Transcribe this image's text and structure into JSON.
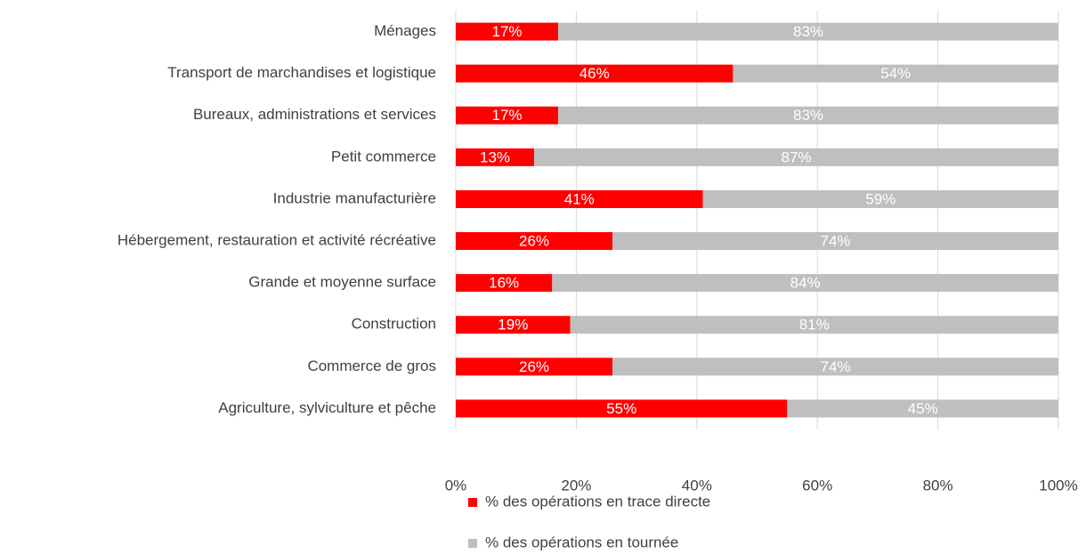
{
  "chart_data": {
    "type": "bar",
    "orientation": "horizontal",
    "stacked": true,
    "categories": [
      "Ménages",
      "Transport de marchandises et logistique",
      "Bureaux, administrations et services",
      "Petit commerce",
      "Industrie manufacturière",
      "Hébergement, restauration et activité récréative",
      "Grande et moyenne surface",
      "Construction",
      "Commerce de gros",
      "Agriculture, sylviculture et pêche"
    ],
    "series": [
      {
        "name": "% des opérations en trace directe",
        "color": "#ff0000",
        "values": [
          17,
          46,
          17,
          13,
          41,
          26,
          16,
          19,
          26,
          55
        ],
        "value_labels": [
          "17%",
          "46%",
          "17%",
          "13%",
          "41%",
          "26%",
          "16%",
          "19%",
          "26%",
          "55%"
        ]
      },
      {
        "name": "% des opérations en tournée",
        "color": "#bfbfbf",
        "values": [
          83,
          54,
          83,
          87,
          59,
          74,
          84,
          81,
          74,
          45
        ],
        "value_labels": [
          "83%",
          "54%",
          "83%",
          "87%",
          "59%",
          "74%",
          "84%",
          "81%",
          "74%",
          "45%"
        ]
      }
    ],
    "xlim": [
      0,
      100
    ],
    "xticks": [
      {
        "value": 0,
        "label": "0%"
      },
      {
        "value": 20,
        "label": "20%"
      },
      {
        "value": 40,
        "label": "40%"
      },
      {
        "value": 60,
        "label": "60%"
      },
      {
        "value": 80,
        "label": "80%"
      },
      {
        "value": 100,
        "label": "100%"
      }
    ],
    "grid": true,
    "legend": "bottom"
  }
}
